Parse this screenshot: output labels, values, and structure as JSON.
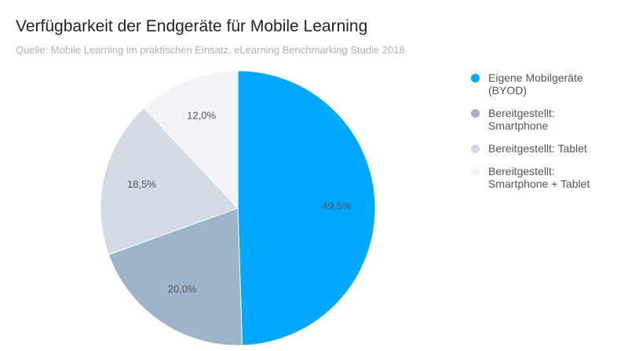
{
  "chart_data": {
    "type": "pie",
    "title": "Verfügbarkeit der Endgeräte für Mobile Learning",
    "subtitle": "Quelle: Mobile Learning im praktischen Einsatz. eLearning Benchmarking Studie 2018",
    "legend_position": "right",
    "start_angle": "top",
    "direction": "clockwise",
    "slices": [
      {
        "label": "Eigene Mobilgeräte\n(BYOD)",
        "value": 49.5,
        "display": "49,5%",
        "color": "#00a8ff"
      },
      {
        "label": "Bereitgestellt:\nSmartphone",
        "value": 20.0,
        "display": "20,0%",
        "color": "#9fb4c9"
      },
      {
        "label": "Bereitgestellt: Tablet",
        "value": 18.5,
        "display": "18,5%",
        "color": "#d2dbe6"
      },
      {
        "label": "Bereitgestellt:\nSmartphone + Tablet",
        "value": 12.0,
        "display": "12,0%",
        "color": "#f2f4f8"
      }
    ]
  }
}
